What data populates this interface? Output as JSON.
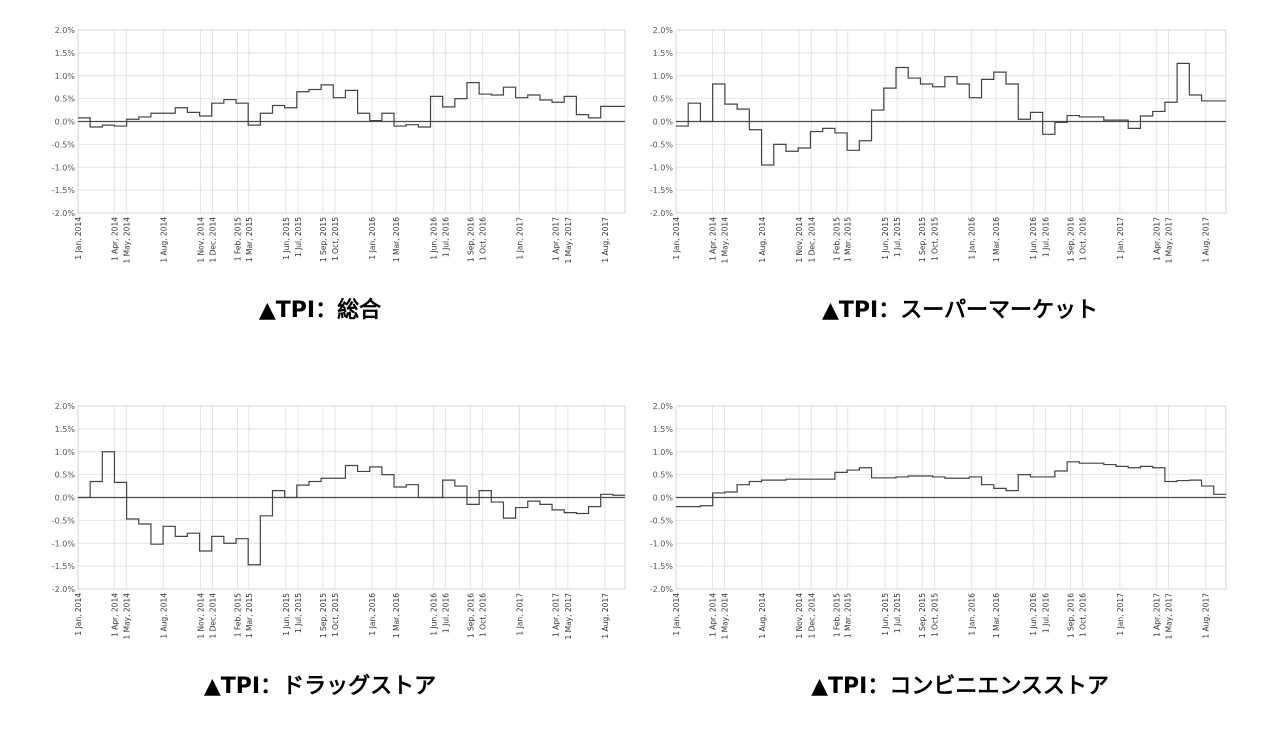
{
  "chart_data": [
    {
      "type": "line",
      "title": "▲TPI：総合",
      "ylim": [
        -2.0,
        2.0
      ],
      "y_ticks": [
        "2.0%",
        "1.5%",
        "1.0%",
        "0.5%",
        "0.0%",
        "-0.5%",
        "-1.0%",
        "-1.5%",
        "-2.0%"
      ],
      "x_range": [
        "2014-01-01",
        "2017-09-20"
      ],
      "x_ticks": [
        {
          "date": "2014-01-01",
          "label": "1 Jan, 2014"
        },
        {
          "date": "2014-04-01",
          "label": "1 Apr, 2014"
        },
        {
          "date": "2014-05-01",
          "label": "1 May, 2014"
        },
        {
          "date": "2014-08-01",
          "label": "1 Aug, 2014"
        },
        {
          "date": "2014-11-01",
          "label": "1 Nov, 2014"
        },
        {
          "date": "2014-12-01",
          "label": "1 Dec, 2014"
        },
        {
          "date": "2015-02-01",
          "label": "1 Feb, 2015"
        },
        {
          "date": "2015-03-01",
          "label": "1 Mar, 2015"
        },
        {
          "date": "2015-06-01",
          "label": "1 Jun, 2015"
        },
        {
          "date": "2015-07-01",
          "label": "1 Jul, 2015"
        },
        {
          "date": "2015-09-01",
          "label": "1 Sep, 2015"
        },
        {
          "date": "2015-10-01",
          "label": "1 Oct, 2015"
        },
        {
          "date": "2016-01-01",
          "label": "1 Jan, 2016"
        },
        {
          "date": "2016-03-01",
          "label": "1 Mar, 2016"
        },
        {
          "date": "2016-06-01",
          "label": "1 Jun, 2016"
        },
        {
          "date": "2016-07-01",
          "label": "1 Jul, 2016"
        },
        {
          "date": "2016-09-01",
          "label": "1 Sep, 2016"
        },
        {
          "date": "2016-10-01",
          "label": "1 Oct, 2016"
        },
        {
          "date": "2017-01-01",
          "label": "1 Jan, 2017"
        },
        {
          "date": "2017-04-01",
          "label": "1 Apr, 2017"
        },
        {
          "date": "2017-05-01",
          "label": "1 May, 2017"
        },
        {
          "date": "2017-08-01",
          "label": "1 Aug, 2017"
        }
      ],
      "grid": true,
      "step": true,
      "values": [
        0.08,
        -0.12,
        -0.08,
        -0.1,
        0.05,
        0.1,
        0.18,
        0.18,
        0.3,
        0.2,
        0.12,
        0.4,
        0.48,
        0.4,
        -0.08,
        0.18,
        0.35,
        0.3,
        0.65,
        0.7,
        0.8,
        0.52,
        0.68,
        0.18,
        0.02,
        0.18,
        -0.1,
        -0.07,
        -0.12,
        0.55,
        0.32,
        0.5,
        0.85,
        0.6,
        0.58,
        0.75,
        0.52,
        0.58,
        0.47,
        0.42,
        0.55,
        0.15,
        0.08,
        0.33,
        0.33
      ]
    },
    {
      "type": "line",
      "title": "▲TPI：スーパーマーケット",
      "ylim": [
        -2.0,
        2.0
      ],
      "y_ticks": [
        "2.0%",
        "1.5%",
        "1.0%",
        "0.5%",
        "0.0%",
        "-0.5%",
        "-1.0%",
        "-1.5%",
        "-2.0%"
      ],
      "x_range": [
        "2014-01-01",
        "2017-09-20"
      ],
      "x_ticks": [
        {
          "date": "2014-01-01",
          "label": "1 Jan, 2014"
        },
        {
          "date": "2014-04-01",
          "label": "1 Apr, 2014"
        },
        {
          "date": "2014-05-01",
          "label": "1 May, 2014"
        },
        {
          "date": "2014-08-01",
          "label": "1 Aug, 2014"
        },
        {
          "date": "2014-11-01",
          "label": "1 Nov, 2014"
        },
        {
          "date": "2014-12-01",
          "label": "1 Dec, 2014"
        },
        {
          "date": "2015-02-01",
          "label": "1 Feb, 2015"
        },
        {
          "date": "2015-03-01",
          "label": "1 Mar, 2015"
        },
        {
          "date": "2015-06-01",
          "label": "1 Jun, 2015"
        },
        {
          "date": "2015-07-01",
          "label": "1 Jul, 2015"
        },
        {
          "date": "2015-09-01",
          "label": "1 Sep, 2015"
        },
        {
          "date": "2015-10-01",
          "label": "1 Oct, 2015"
        },
        {
          "date": "2016-01-01",
          "label": "1 Jan, 2016"
        },
        {
          "date": "2016-03-01",
          "label": "1 Mar, 2016"
        },
        {
          "date": "2016-06-01",
          "label": "1 Jun, 2016"
        },
        {
          "date": "2016-07-01",
          "label": "1 Jul, 2016"
        },
        {
          "date": "2016-09-01",
          "label": "1 Sep, 2016"
        },
        {
          "date": "2016-10-01",
          "label": "1 Oct, 2016"
        },
        {
          "date": "2017-01-01",
          "label": "1 Jan, 2017"
        },
        {
          "date": "2017-04-01",
          "label": "1 Apr, 2017"
        },
        {
          "date": "2017-05-01",
          "label": "1 May, 2017"
        },
        {
          "date": "2017-08-01",
          "label": "1 Aug, 2017"
        }
      ],
      "grid": true,
      "step": true,
      "values": [
        -0.1,
        0.4,
        0.0,
        0.82,
        0.38,
        0.27,
        -0.18,
        -0.95,
        -0.5,
        -0.65,
        -0.58,
        -0.22,
        -0.15,
        -0.25,
        -0.63,
        -0.42,
        0.25,
        0.73,
        1.18,
        0.95,
        0.82,
        0.76,
        0.98,
        0.82,
        0.52,
        0.92,
        1.08,
        0.82,
        0.05,
        0.2,
        -0.28,
        -0.02,
        0.13,
        0.1,
        0.1,
        0.03,
        0.03,
        -0.15,
        0.12,
        0.22,
        0.42,
        1.27,
        0.58,
        0.45,
        0.45
      ]
    },
    {
      "type": "line",
      "title": "▲TPI：ドラッグストア",
      "ylim": [
        -2.0,
        2.0
      ],
      "y_ticks": [
        "2.0%",
        "1.5%",
        "1.0%",
        "0.5%",
        "0.0%",
        "-0.5%",
        "-1.0%",
        "-1.5%",
        "-2.0%"
      ],
      "x_range": [
        "2014-01-01",
        "2017-09-20"
      ],
      "x_ticks": [
        {
          "date": "2014-01-01",
          "label": "1 Jan, 2014"
        },
        {
          "date": "2014-04-01",
          "label": "1 Apr, 2014"
        },
        {
          "date": "2014-05-01",
          "label": "1 May, 2014"
        },
        {
          "date": "2014-08-01",
          "label": "1 Aug, 2014"
        },
        {
          "date": "2014-11-01",
          "label": "1 Nov, 2014"
        },
        {
          "date": "2014-12-01",
          "label": "1 Dec, 2014"
        },
        {
          "date": "2015-02-01",
          "label": "1 Feb, 2015"
        },
        {
          "date": "2015-03-01",
          "label": "1 Mar, 2015"
        },
        {
          "date": "2015-06-01",
          "label": "1 Jun, 2015"
        },
        {
          "date": "2015-07-01",
          "label": "1 Jul, 2015"
        },
        {
          "date": "2015-09-01",
          "label": "1 Sep, 2015"
        },
        {
          "date": "2015-10-01",
          "label": "1 Oct, 2015"
        },
        {
          "date": "2016-01-01",
          "label": "1 Jan, 2016"
        },
        {
          "date": "2016-03-01",
          "label": "1 Mar, 2016"
        },
        {
          "date": "2016-06-01",
          "label": "1 Jun, 2016"
        },
        {
          "date": "2016-07-01",
          "label": "1 Jul, 2016"
        },
        {
          "date": "2016-09-01",
          "label": "1 Sep, 2016"
        },
        {
          "date": "2016-10-01",
          "label": "1 Oct, 2016"
        },
        {
          "date": "2017-01-01",
          "label": "1 Jan, 2017"
        },
        {
          "date": "2017-04-01",
          "label": "1 Apr, 2017"
        },
        {
          "date": "2017-05-01",
          "label": "1 May, 2017"
        },
        {
          "date": "2017-08-01",
          "label": "1 Aug, 2017"
        }
      ],
      "grid": true,
      "step": true,
      "values": [
        0.0,
        0.35,
        1.0,
        0.33,
        -0.47,
        -0.58,
        -1.02,
        -0.63,
        -0.85,
        -0.78,
        -1.17,
        -0.85,
        -1.0,
        -0.9,
        -1.47,
        -0.4,
        0.15,
        0.0,
        0.27,
        0.35,
        0.42,
        0.42,
        0.7,
        0.57,
        0.67,
        0.5,
        0.23,
        0.28,
        0.0,
        0.0,
        0.38,
        0.25,
        -0.15,
        0.15,
        -0.1,
        -0.45,
        -0.22,
        -0.08,
        -0.15,
        -0.27,
        -0.33,
        -0.35,
        -0.2,
        0.07,
        0.05
      ]
    },
    {
      "type": "line",
      "title": "▲TPI：コンビニエンスストア",
      "ylim": [
        -2.0,
        2.0
      ],
      "y_ticks": [
        "2.0%",
        "1.5%",
        "1.0%",
        "0.5%",
        "0.0%",
        "-0.5%",
        "-1.0%",
        "-1.5%",
        "-2.0%"
      ],
      "x_range": [
        "2014-01-01",
        "2017-09-20"
      ],
      "x_ticks": [
        {
          "date": "2014-01-01",
          "label": "1 Jan, 2014"
        },
        {
          "date": "2014-04-01",
          "label": "1 Apr, 2014"
        },
        {
          "date": "2014-05-01",
          "label": "1 May, 2014"
        },
        {
          "date": "2014-08-01",
          "label": "1 Aug, 2014"
        },
        {
          "date": "2014-11-01",
          "label": "1 Nov, 2014"
        },
        {
          "date": "2014-12-01",
          "label": "1 Dec, 2014"
        },
        {
          "date": "2015-02-01",
          "label": "1 Feb, 2015"
        },
        {
          "date": "2015-03-01",
          "label": "1 Mar, 2015"
        },
        {
          "date": "2015-06-01",
          "label": "1 Jun, 2015"
        },
        {
          "date": "2015-07-01",
          "label": "1 Jul, 2015"
        },
        {
          "date": "2015-09-01",
          "label": "1 Sep, 2015"
        },
        {
          "date": "2015-10-01",
          "label": "1 Oct, 2015"
        },
        {
          "date": "2016-01-01",
          "label": "1 Jan, 2016"
        },
        {
          "date": "2016-03-01",
          "label": "1 Mar, 2016"
        },
        {
          "date": "2016-06-01",
          "label": "1 Jun, 2016"
        },
        {
          "date": "2016-07-01",
          "label": "1 Jul, 2016"
        },
        {
          "date": "2016-09-01",
          "label": "1 Sep, 2016"
        },
        {
          "date": "2016-10-01",
          "label": "1 Oct, 2016"
        },
        {
          "date": "2017-01-01",
          "label": "1 Jan, 2017"
        },
        {
          "date": "2017-04-01",
          "label": "1 Apr, 2017"
        },
        {
          "date": "2017-05-01",
          "label": "1 May, 2017"
        },
        {
          "date": "2017-08-01",
          "label": "1 Aug, 2017"
        }
      ],
      "grid": true,
      "step": true,
      "values": [
        -0.2,
        -0.2,
        -0.18,
        0.1,
        0.12,
        0.28,
        0.35,
        0.38,
        0.38,
        0.4,
        0.4,
        0.4,
        0.4,
        0.55,
        0.6,
        0.65,
        0.43,
        0.43,
        0.45,
        0.47,
        0.47,
        0.45,
        0.42,
        0.42,
        0.45,
        0.28,
        0.2,
        0.15,
        0.5,
        0.45,
        0.45,
        0.58,
        0.78,
        0.75,
        0.75,
        0.72,
        0.68,
        0.65,
        0.68,
        0.65,
        0.35,
        0.37,
        0.38,
        0.25,
        0.07
      ]
    }
  ]
}
